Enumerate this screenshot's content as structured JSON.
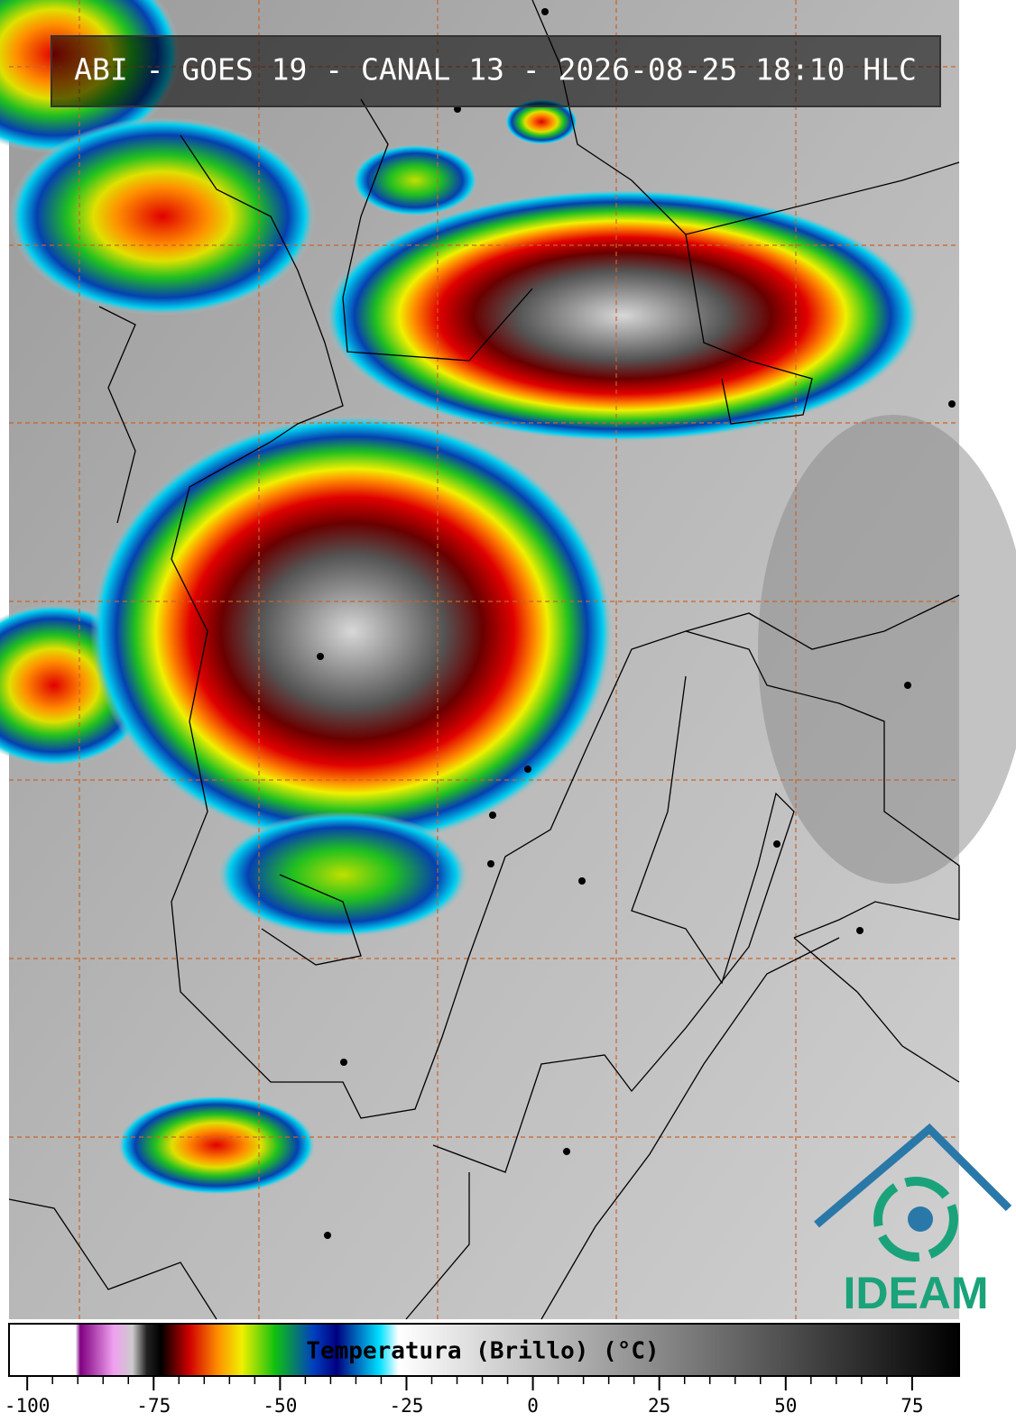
{
  "title": "ABI - GOES 19 - CANAL 13 - 2026-08-25 18:10 HLC",
  "colorbar": {
    "label": "Temperatura (Brillo) (°C)",
    "xlim": [
      -103.6,
      84.3
    ],
    "xticks": [
      -100,
      -75,
      -50,
      -25,
      0,
      25,
      50,
      75
    ]
  },
  "logo": {
    "text": "IDEAM"
  }
}
